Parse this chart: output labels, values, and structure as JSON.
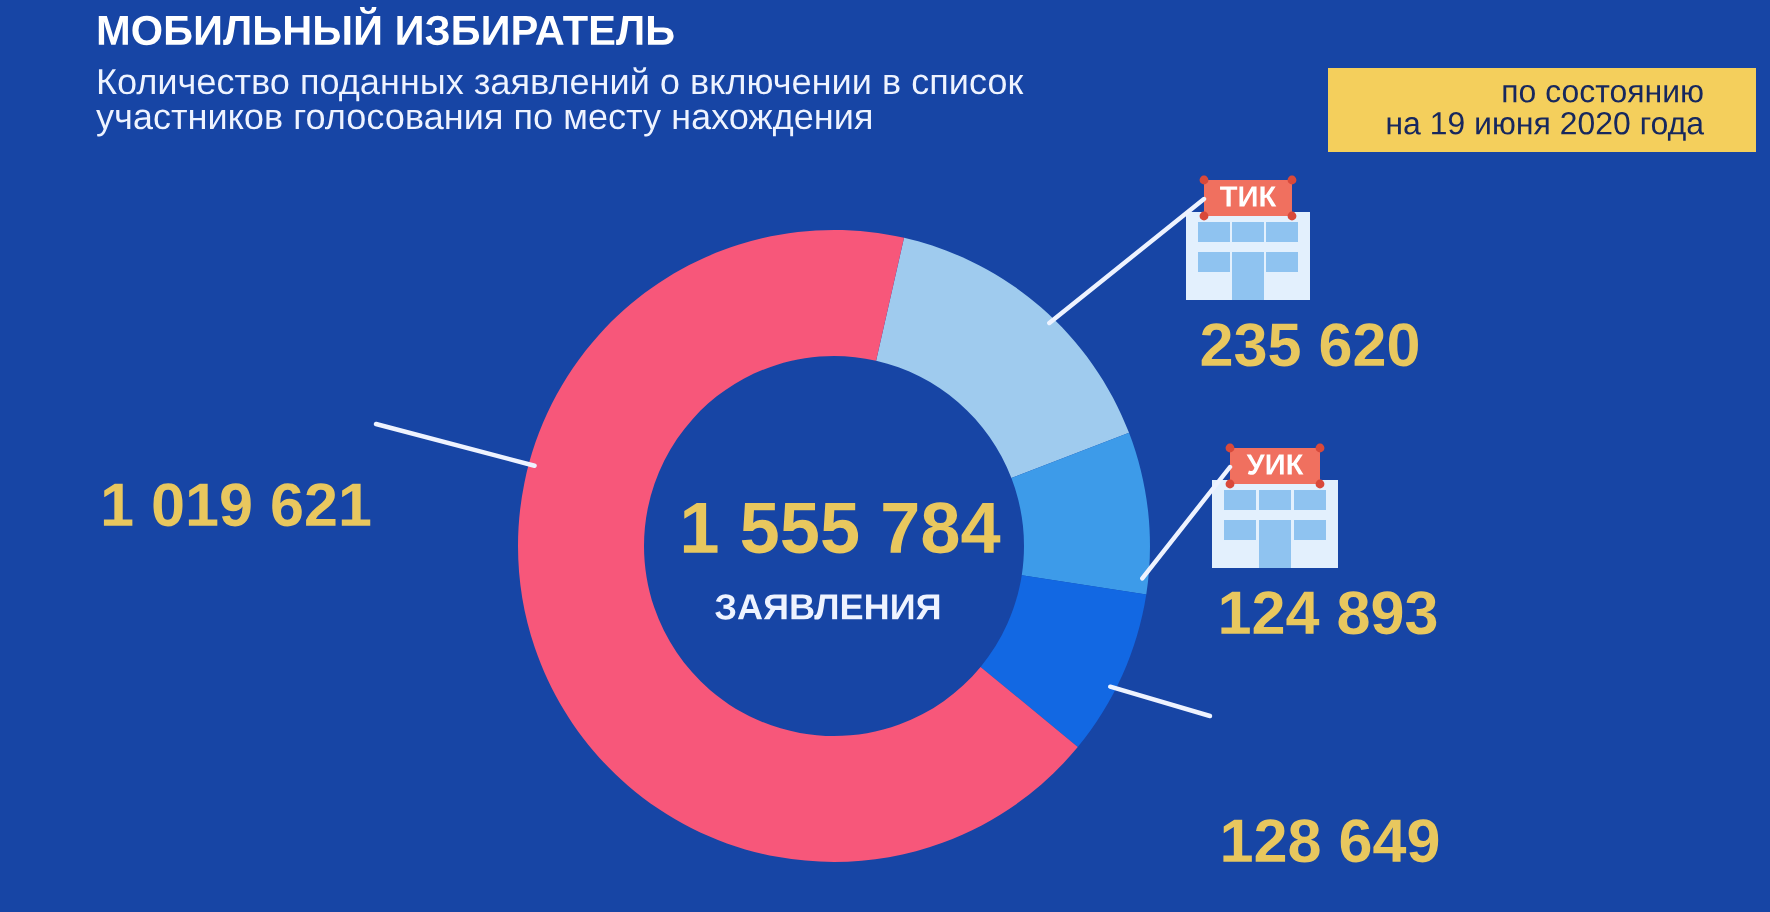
{
  "chart_data": {
    "type": "donut",
    "title": "МОБИЛЬНЫЙ ИЗБИРАТЕЛЬ",
    "subtitle": "Количество поданных заявлений о включении в список\nучастников голосования по месту нахождения",
    "categories": [
      "ТИК",
      "УИК",
      null,
      null
    ],
    "values": [
      235620,
      124893,
      128649,
      1019621
    ],
    "colors": [
      "#9fcbee",
      "#3d9be9",
      "#1268e3",
      "#f7577a"
    ],
    "value_labels": [
      "235 620",
      "124 893",
      "128 649",
      "1 019 621"
    ],
    "annotations": [
      "по состоянию\nна 19 июня 2020 года",
      "1 555 784",
      "ЗАЯВЛЕНИЯ"
    ]
  }
}
